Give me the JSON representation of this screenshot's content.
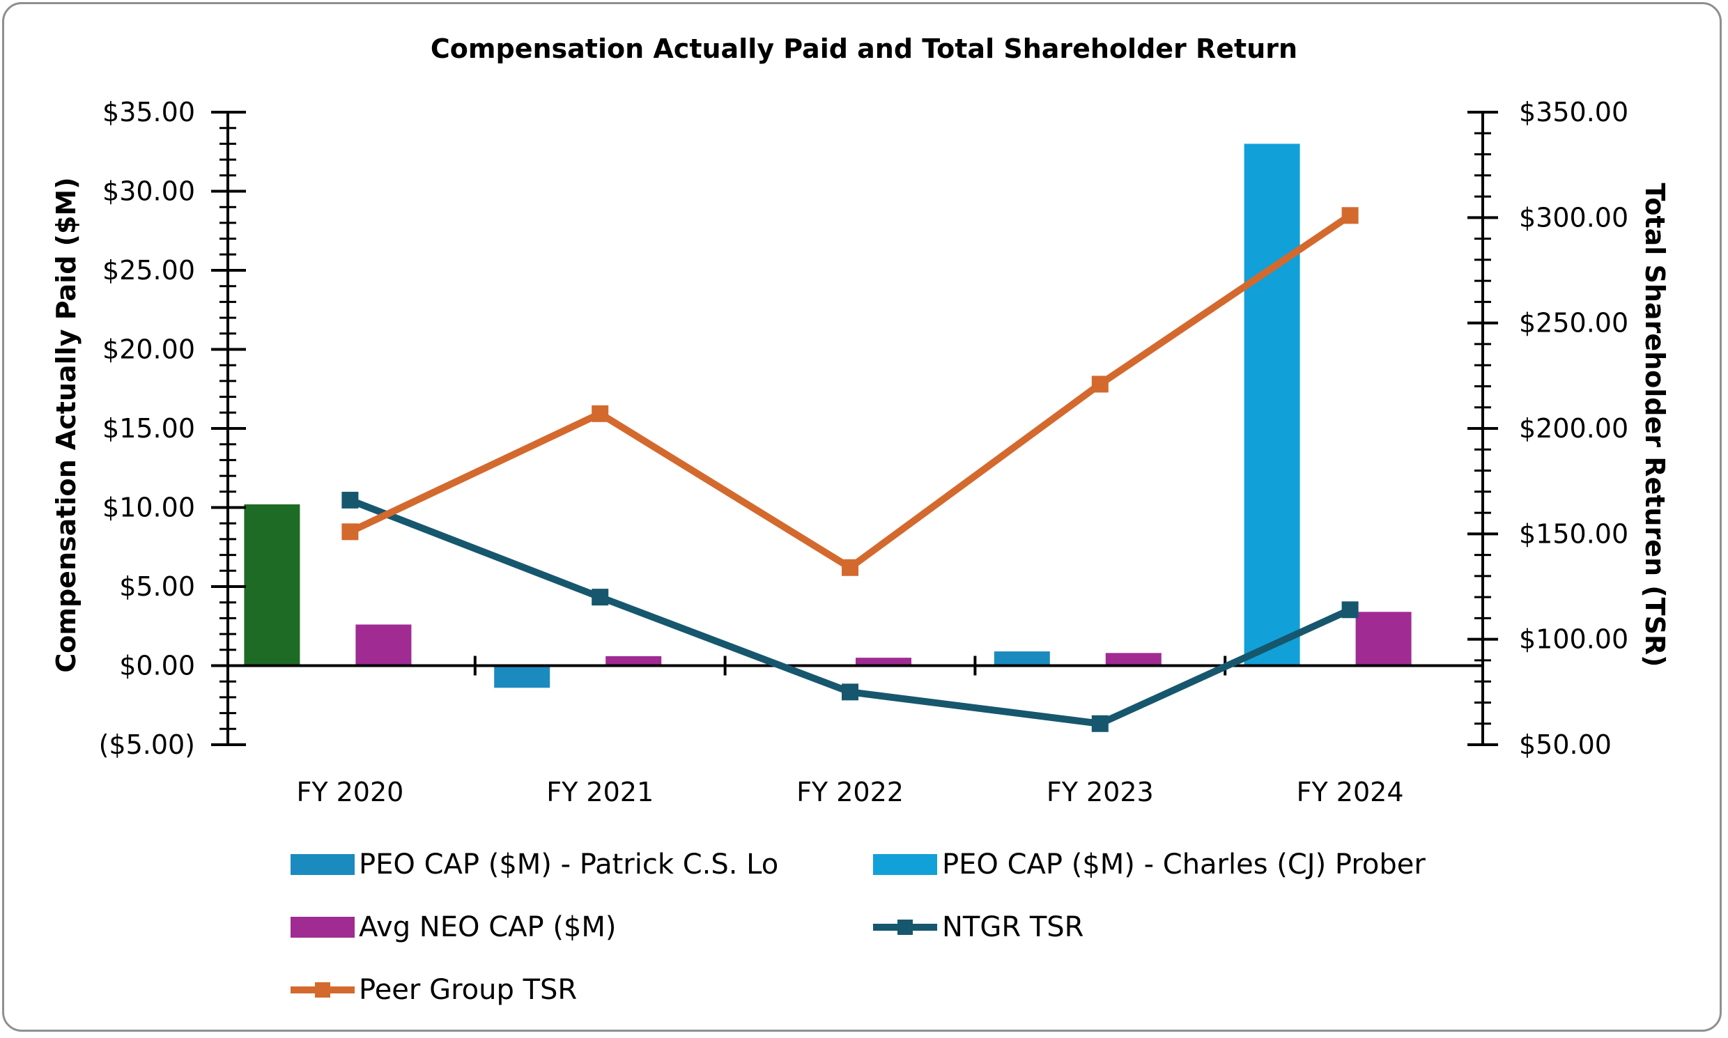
{
  "chart_data": {
    "type": "bar",
    "title": "Compensation Actually Paid and Total Shareholder Return",
    "categories": [
      "FY 2020",
      "FY 2021",
      "FY 2022",
      "FY 2023",
      "FY 2024"
    ],
    "ylabel": "Compensation Actually Paid ($M)",
    "y2label": "Total Shareholder Returen (TSR)",
    "ylim": [
      -5,
      35
    ],
    "y2lim": [
      50,
      350
    ],
    "y_ticks": [
      "$35.00",
      "$30.00",
      "$25.00",
      "$20.00",
      "$15.00",
      "$10.00",
      "$5.00",
      "$0.00",
      "($5.00)"
    ],
    "y2_ticks": [
      "$350.00",
      "$300.00",
      "$250.00",
      "$200.00",
      "$150.00",
      "$100.00",
      "$50.00"
    ],
    "fy2020_peo_note_color": "#1e6b25",
    "series": [
      {
        "name": "PEO CAP ($M) - Patrick C.S. Lo",
        "kind": "bar",
        "axis": "left",
        "color": "#1b8bbf",
        "values": [
          10.2,
          -1.4,
          null,
          0.9,
          null
        ],
        "colors": [
          "#1e6b25",
          "#1b8bbf",
          "#1b8bbf",
          "#1b8bbf",
          "#1b8bbf"
        ]
      },
      {
        "name": "PEO CAP ($M) - Charles (CJ) Prober",
        "kind": "bar",
        "axis": "left",
        "color": "#12a0d8",
        "values": [
          null,
          null,
          null,
          null,
          33.0
        ]
      },
      {
        "name": "Avg NEO CAP ($M)",
        "kind": "bar",
        "axis": "left",
        "color": "#a02b93",
        "values": [
          2.6,
          0.6,
          0.5,
          0.8,
          3.4
        ]
      },
      {
        "name": "NTGR TSR",
        "kind": "line",
        "axis": "right",
        "color": "#16576e",
        "values": [
          166,
          120,
          75,
          60,
          114
        ]
      },
      {
        "name": "Peer Group TSR",
        "kind": "line",
        "axis": "right",
        "color": "#d4692e",
        "values": [
          151,
          207,
          134,
          221,
          301
        ]
      }
    ],
    "legend_position": "bottom",
    "grid": false
  }
}
